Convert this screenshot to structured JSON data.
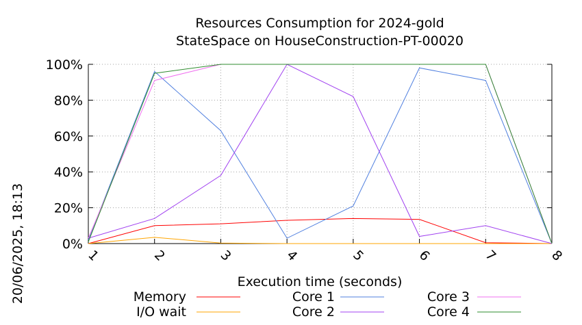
{
  "chart_data": {
    "type": "line",
    "title": "Resources Consumption for 2024-gold",
    "subtitle": "StateSpace on HouseConstruction-PT-00020",
    "xlabel": "Execution time (seconds)",
    "ylabel": "",
    "side_label": "20/06/2025, 18:13",
    "x": [
      1,
      2,
      3,
      4,
      5,
      6,
      7,
      8
    ],
    "x_tick_labels": [
      "1",
      "2",
      "3",
      "4",
      "5",
      "6",
      "7",
      "8"
    ],
    "xlim": [
      1,
      8
    ],
    "ylim": [
      0,
      100
    ],
    "y_ticks": [
      0,
      20,
      40,
      60,
      80,
      100
    ],
    "y_tick_labels": [
      "0%",
      "20%",
      "40%",
      "60%",
      "80%",
      "100%"
    ],
    "grid": true,
    "legend_position": "bottom",
    "series": [
      {
        "name": "Memory",
        "color": "#ff0000",
        "values": [
          0,
          10,
          11,
          13,
          14,
          13.5,
          0.5,
          0
        ]
      },
      {
        "name": "I/O wait",
        "color": "#ffa500",
        "values": [
          0,
          3.5,
          0.3,
          0,
          0,
          0,
          0,
          0
        ]
      },
      {
        "name": "Core 1",
        "color": "#4f7fdf",
        "values": [
          2,
          96,
          63,
          3,
          21,
          98,
          91,
          0
        ]
      },
      {
        "name": "Core 2",
        "color": "#a040f0",
        "values": [
          3,
          14,
          38,
          100,
          82,
          4,
          10,
          0
        ]
      },
      {
        "name": "Core 3",
        "color": "#f070f0",
        "values": [
          3,
          91,
          100,
          100,
          100,
          100,
          100,
          0
        ]
      },
      {
        "name": "Core 4",
        "color": "#2e8b2e",
        "values": [
          1,
          95,
          100,
          100,
          100,
          100,
          100,
          0
        ]
      }
    ]
  }
}
